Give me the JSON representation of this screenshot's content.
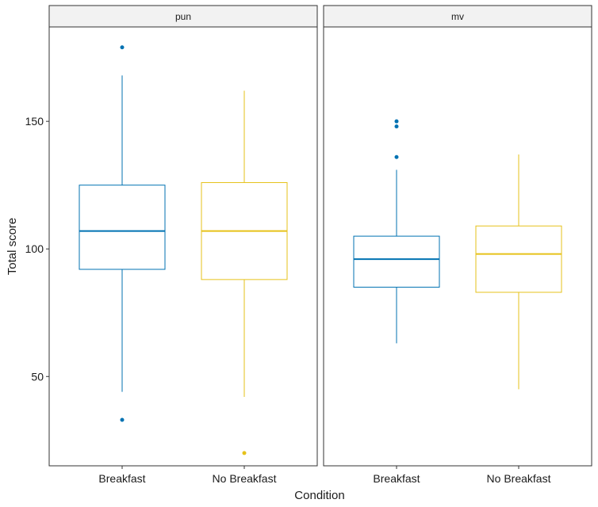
{
  "chart_data": {
    "type": "boxplot",
    "xlabel": "Condition",
    "ylabel": "Total score",
    "ylim": [
      15,
      187
    ],
    "yticks": [
      50,
      100,
      150
    ],
    "categories": [
      "Breakfast",
      "No Breakfast"
    ],
    "colors": {
      "Breakfast": "#0072B2",
      "No Breakfast": "#E6C21A"
    },
    "grid": false,
    "facets": [
      {
        "label": "pun",
        "boxes": [
          {
            "category": "Breakfast",
            "lower_whisker": 44,
            "q1": 92,
            "median": 107,
            "q3": 125,
            "upper_whisker": 168,
            "outliers": [
              179,
              33
            ]
          },
          {
            "category": "No Breakfast",
            "lower_whisker": 42,
            "q1": 88,
            "median": 107,
            "q3": 126,
            "upper_whisker": 162,
            "outliers": [
              20
            ]
          }
        ]
      },
      {
        "label": "mv",
        "boxes": [
          {
            "category": "Breakfast",
            "lower_whisker": 63,
            "q1": 85,
            "median": 96,
            "q3": 105,
            "upper_whisker": 131,
            "outliers": [
              150,
              148,
              136
            ]
          },
          {
            "category": "No Breakfast",
            "lower_whisker": 45,
            "q1": 83,
            "median": 98,
            "q3": 109,
            "upper_whisker": 137,
            "outliers": []
          }
        ]
      }
    ]
  }
}
